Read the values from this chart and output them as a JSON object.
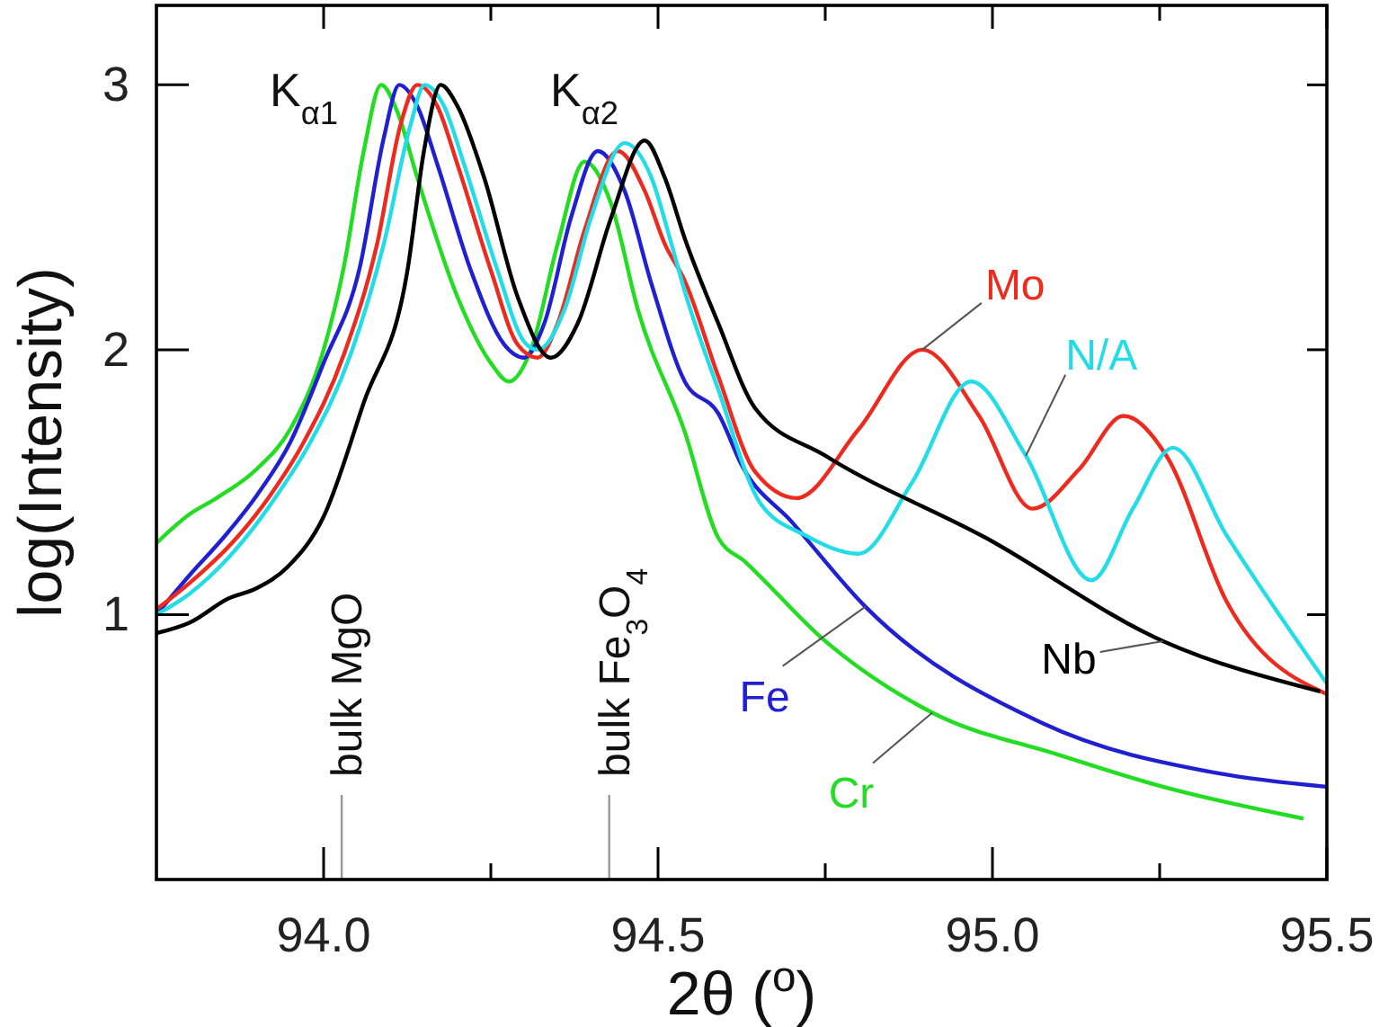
{
  "chart_data": {
    "type": "line",
    "xlabel": "2θ ($^{o}$)",
    "ylabel": "log(Intensity)",
    "xlim": [
      93.75,
      95.5
    ],
    "ylim": [
      0,
      3.3
    ],
    "xticks": [
      {
        "value": 94,
        "label": "94.0"
      },
      {
        "value": 94.25,
        "label": null
      },
      {
        "value": 94.5,
        "label": "94.5"
      },
      {
        "value": 94.75,
        "label": null
      },
      {
        "value": 95,
        "label": "95.0"
      },
      {
        "value": 95.25,
        "label": null
      },
      {
        "value": 95.5,
        "label": "95.5"
      }
    ],
    "yticks": [
      1,
      2,
      3
    ],
    "series": [
      {
        "name": "Cr",
        "color": "#22dd22",
        "x": [
          93.75,
          93.8,
          93.84,
          93.9,
          93.95,
          94.0,
          94.03,
          94.06,
          94.086,
          94.11,
          94.14,
          94.2,
          94.25,
          94.277,
          94.31,
          94.35,
          94.39,
          94.43,
          94.47,
          94.54,
          94.59,
          94.63,
          94.75,
          94.91,
          95.1,
          95.255,
          95.465
        ],
        "values": [
          1.27,
          1.38,
          1.44,
          1.55,
          1.7,
          2.0,
          2.31,
          2.75,
          3.0,
          2.9,
          2.65,
          2.2,
          1.95,
          1.88,
          2.0,
          2.4,
          2.71,
          2.55,
          2.15,
          1.69,
          1.29,
          1.2,
          0.9,
          0.63,
          0.47,
          0.35,
          0.23
        ]
      },
      {
        "name": "Fe",
        "color": "#2020d0",
        "x": [
          93.75,
          93.8,
          93.85,
          93.9,
          93.95,
          94.0,
          94.054,
          94.09,
          94.113,
          94.14,
          94.17,
          94.22,
          94.27,
          94.3,
          94.33,
          94.37,
          94.41,
          94.45,
          94.49,
          94.54,
          94.59,
          94.626,
          94.7,
          94.81,
          95.075,
          95.34,
          95.5
        ],
        "values": [
          1.0,
          1.15,
          1.29,
          1.45,
          1.65,
          1.95,
          2.31,
          2.8,
          3.0,
          2.92,
          2.7,
          2.3,
          2.02,
          1.97,
          2.1,
          2.5,
          2.75,
          2.6,
          2.25,
          1.88,
          1.76,
          1.56,
          1.35,
          1.03,
          0.59,
          0.4,
          0.35
        ]
      },
      {
        "name": "Mo",
        "color": "#ee2a1e",
        "x": [
          93.75,
          93.8,
          93.87,
          93.92,
          93.97,
          94.03,
          94.08,
          94.115,
          94.14,
          94.17,
          94.2,
          94.25,
          94.29,
          94.32,
          94.35,
          94.39,
          94.44,
          94.48,
          94.51,
          94.54,
          94.59,
          94.645,
          94.707,
          94.8,
          94.895,
          94.98,
          95.06,
          95.13,
          95.196,
          95.26,
          95.35,
          95.5
        ],
        "values": [
          1.02,
          1.12,
          1.29,
          1.45,
          1.65,
          1.98,
          2.4,
          2.85,
          3.0,
          2.92,
          2.7,
          2.3,
          2.02,
          1.97,
          2.1,
          2.45,
          2.75,
          2.6,
          2.4,
          2.26,
          1.9,
          1.54,
          1.44,
          1.7,
          2.0,
          1.75,
          1.4,
          1.55,
          1.75,
          1.6,
          1.05,
          0.7
        ]
      },
      {
        "name": "N/A",
        "color": "#22dde8",
        "x": [
          93.75,
          93.8,
          93.88,
          93.93,
          93.98,
          94.04,
          94.09,
          94.13,
          94.151,
          94.18,
          94.21,
          94.26,
          94.3,
          94.32,
          94.36,
          94.4,
          94.45,
          94.49,
          94.52,
          94.54,
          94.59,
          94.653,
          94.72,
          94.8,
          94.88,
          94.968,
          95.05,
          95.148,
          95.21,
          95.27,
          95.35,
          95.5
        ],
        "values": [
          1.0,
          1.08,
          1.28,
          1.45,
          1.65,
          1.98,
          2.4,
          2.85,
          3.0,
          2.92,
          2.7,
          2.3,
          2.03,
          2.0,
          2.15,
          2.5,
          2.78,
          2.65,
          2.4,
          2.22,
          1.85,
          1.42,
          1.3,
          1.23,
          1.5,
          1.88,
          1.6,
          1.13,
          1.4,
          1.63,
          1.3,
          0.74
        ]
      },
      {
        "name": "Nb",
        "color": "#000000",
        "x": [
          93.75,
          93.8,
          93.857,
          93.9,
          93.946,
          94.0,
          94.06,
          94.126,
          94.15,
          94.175,
          94.2,
          94.24,
          94.29,
          94.34,
          94.38,
          94.43,
          94.48,
          94.51,
          94.54,
          94.59,
          94.645,
          94.75,
          94.99,
          95.255,
          95.49
        ],
        "values": [
          0.93,
          0.97,
          1.06,
          1.1,
          1.18,
          1.37,
          1.8,
          2.31,
          2.75,
          3.0,
          2.92,
          2.65,
          2.2,
          1.97,
          2.1,
          2.5,
          2.79,
          2.65,
          2.42,
          2.1,
          1.78,
          1.6,
          1.29,
          0.9,
          0.71
        ]
      }
    ],
    "ref_lines": [
      {
        "axis": "x",
        "value": 94.027,
        "label": "bulk MgO",
        "color": "#999999"
      },
      {
        "axis": "x",
        "value": 94.427,
        "label": "bulk Fe$_{3}$O$_{4}$",
        "color": "#999999"
      }
    ],
    "annotations": [
      "K$_{α1}$",
      "K$_{α2}$"
    ]
  }
}
